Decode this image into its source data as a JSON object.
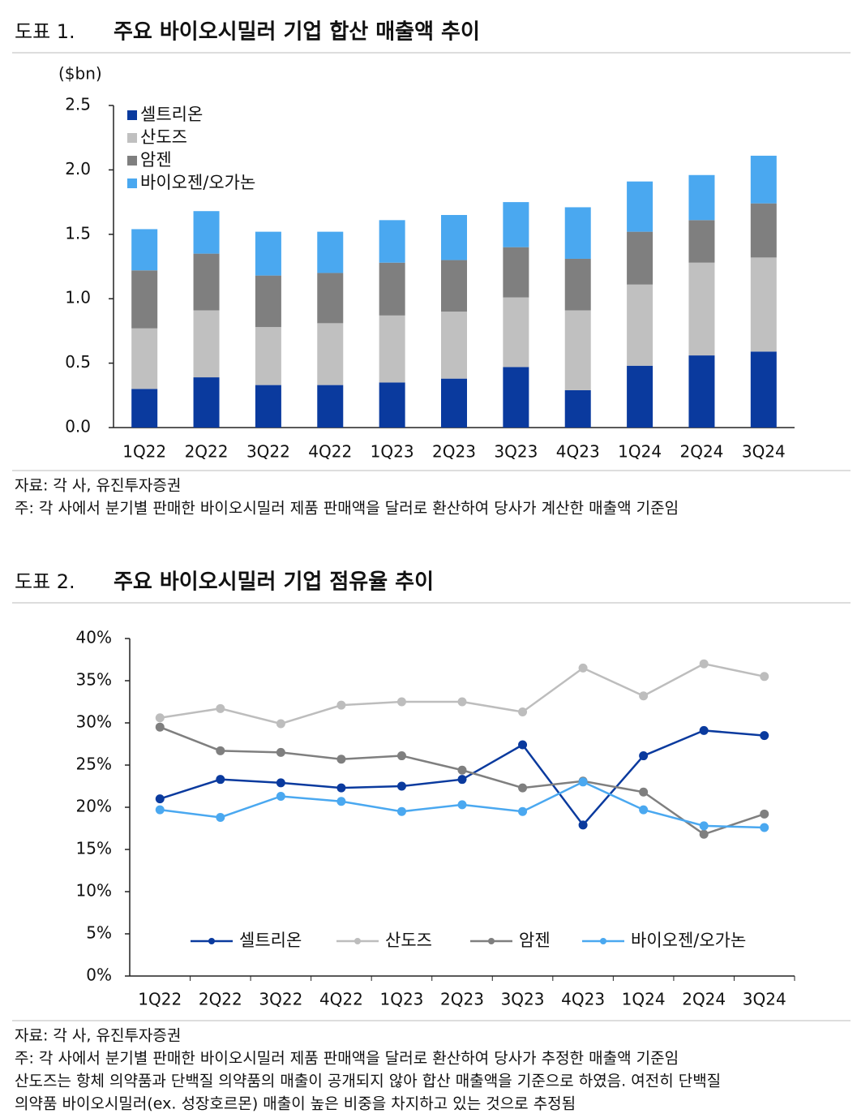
{
  "chart_data": [
    {
      "type": "bar",
      "stacked": true,
      "label": "도표 1.",
      "title": "주요 바이오시밀러 기업 합산 매출액 추이",
      "ylabel": "($bn)",
      "categories": [
        "1Q22",
        "2Q22",
        "3Q22",
        "4Q22",
        "1Q23",
        "2Q23",
        "3Q23",
        "4Q23",
        "1Q24",
        "2Q24",
        "3Q24"
      ],
      "series": [
        {
          "name": "셀트리온",
          "color": "#0a3a9e",
          "values": [
            0.3,
            0.39,
            0.33,
            0.33,
            0.35,
            0.38,
            0.47,
            0.29,
            0.48,
            0.56,
            0.59
          ]
        },
        {
          "name": "산도즈",
          "color": "#c0c0c0",
          "values": [
            0.47,
            0.52,
            0.45,
            0.48,
            0.52,
            0.52,
            0.54,
            0.62,
            0.63,
            0.72,
            0.73
          ]
        },
        {
          "name": "암젠",
          "color": "#7f7f7f",
          "values": [
            0.45,
            0.44,
            0.4,
            0.39,
            0.41,
            0.4,
            0.39,
            0.4,
            0.41,
            0.33,
            0.42
          ]
        },
        {
          "name": "바이오젠/오가논",
          "color": "#4aa8f0",
          "values": [
            0.32,
            0.33,
            0.34,
            0.32,
            0.33,
            0.35,
            0.35,
            0.4,
            0.39,
            0.35,
            0.37
          ]
        }
      ],
      "ylim": [
        0,
        2.5
      ],
      "yticks": [
        {
          "value": 0,
          "label": "0.0"
        },
        0.5,
        {
          "value": 1,
          "label": "1.0"
        },
        1.5,
        {
          "value": 2,
          "label": "2.0"
        },
        2.5
      ],
      "legend": "top-left",
      "source": "자료: 각 사, 유진투자증권",
      "notes": [
        "주: 각 사에서 분기별 판매한 바이오시밀러 제품 판매액을 달러로 환산하여 당사가 계산한 매출액 기준임"
      ]
    },
    {
      "type": "line",
      "label": "도표 2.",
      "title": "주요 바이오시밀러 기업 점유율 추이",
      "categories": [
        "1Q22",
        "2Q22",
        "3Q22",
        "4Q22",
        "1Q23",
        "2Q23",
        "3Q23",
        "4Q23",
        "1Q24",
        "2Q24",
        "3Q24"
      ],
      "series": [
        {
          "name": "셀트리온",
          "color": "#0a3a9e",
          "values": [
            21.0,
            23.3,
            22.9,
            22.3,
            22.5,
            23.3,
            27.4,
            17.9,
            26.1,
            29.1,
            28.5
          ]
        },
        {
          "name": "산도즈",
          "color": "#bdbdbd",
          "values": [
            30.6,
            31.7,
            29.9,
            32.1,
            32.5,
            32.5,
            31.3,
            36.5,
            33.2,
            37.0,
            35.5
          ]
        },
        {
          "name": "암젠",
          "color": "#7f7f7f",
          "values": [
            29.5,
            26.7,
            26.5,
            25.7,
            26.1,
            24.4,
            22.3,
            23.1,
            21.8,
            16.8,
            19.2
          ]
        },
        {
          "name": "바이오젠/오가논",
          "color": "#4aa8f0",
          "values": [
            19.7,
            18.8,
            21.3,
            20.7,
            19.5,
            20.3,
            19.5,
            23.0,
            19.7,
            17.8,
            17.6
          ]
        }
      ],
      "ylim": [
        0,
        40
      ],
      "yticks": [
        {
          "value": 0,
          "label": "0%"
        },
        {
          "value": 5,
          "label": "5%"
        },
        {
          "value": 10,
          "label": "10%"
        },
        {
          "value": 15,
          "label": "15%"
        },
        {
          "value": 20,
          "label": "20%"
        },
        {
          "value": 25,
          "label": "25%"
        },
        {
          "value": 30,
          "label": "30%"
        },
        {
          "value": 35,
          "label": "35%"
        },
        {
          "value": 40,
          "label": "40%"
        }
      ],
      "legend": "bottom",
      "source": "자료: 각 사, 유진투자증권",
      "notes": [
        "주: 각 사에서 분기별 판매한 바이오시밀러 제품 판매액을 달러로 환산하여 당사가 추정한 매출액 기준임",
        "산도즈는 항체 의약품과 단백질 의약품의 매출이 공개되지 않아 합산 매출액을 기준으로 하였음. 여전히 단백질",
        "의약품 바이오시밀러(ex. 성장호르몬) 매출이 높은 비중을 차지하고 있는 것으로 추정됨"
      ]
    }
  ]
}
